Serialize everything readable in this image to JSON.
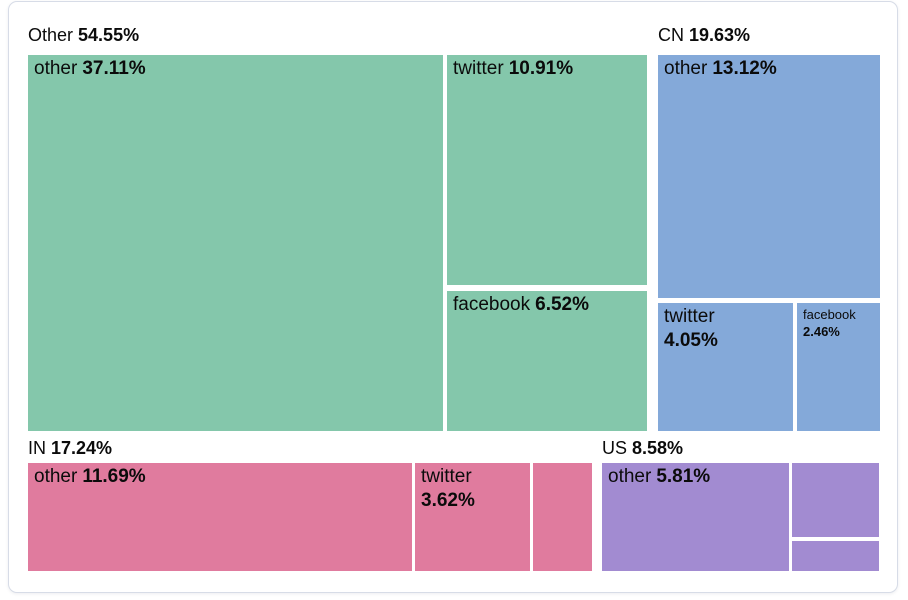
{
  "chart_data": {
    "type": "treemap",
    "legend": "none",
    "value_format": "percent",
    "groups": [
      {
        "label": "Other",
        "pct_text": "54.55%",
        "value": 54.55,
        "color": "#84c7ab",
        "children": [
          {
            "label": "other",
            "pct_text": "37.11%",
            "value": 37.11
          },
          {
            "label": "twitter",
            "pct_text": "10.91%",
            "value": 10.91
          },
          {
            "label": "facebook",
            "pct_text": "6.52%",
            "value": 6.52
          }
        ]
      },
      {
        "label": "CN",
        "pct_text": "19.63%",
        "value": 19.63,
        "color": "#84a9d9",
        "children": [
          {
            "label": "other",
            "pct_text": "13.12%",
            "value": 13.12
          },
          {
            "label": "twitter",
            "pct_text": "4.05%",
            "value": 4.05
          },
          {
            "label": "facebook",
            "pct_text": "2.46%",
            "value": 2.46
          }
        ]
      },
      {
        "label": "IN",
        "pct_text": "17.24%",
        "value": 17.24,
        "color": "#e07b9e",
        "children": [
          {
            "label": "other",
            "pct_text": "11.69%",
            "value": 11.69
          },
          {
            "label": "twitter",
            "pct_text": "3.62%",
            "value": 3.62
          },
          {
            "label": "",
            "pct_text": "",
            "value": null
          }
        ]
      },
      {
        "label": "US",
        "pct_text": "8.58%",
        "value": 8.58,
        "color": "#a28bd1",
        "children": [
          {
            "label": "other",
            "pct_text": "5.81%",
            "value": 5.81
          },
          {
            "label": "",
            "pct_text": "",
            "value": null
          },
          {
            "label": "",
            "pct_text": "",
            "value": null
          }
        ]
      }
    ]
  }
}
